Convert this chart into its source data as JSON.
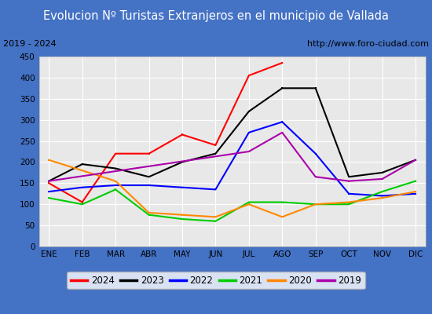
{
  "title": "Evolucion Nº Turistas Extranjeros en el municipio de Vallada",
  "subtitle_left": "2019 - 2024",
  "subtitle_right": "http://www.foro-ciudad.com",
  "months": [
    "ENE",
    "FEB",
    "MAR",
    "ABR",
    "MAY",
    "JUN",
    "JUL",
    "AGO",
    "SEP",
    "OCT",
    "NOV",
    "DIC"
  ],
  "ylim": [
    0,
    450
  ],
  "yticks": [
    0,
    50,
    100,
    150,
    200,
    250,
    300,
    350,
    400,
    450
  ],
  "series": {
    "2024": {
      "color": "#ff0000",
      "values": [
        150,
        105,
        220,
        220,
        265,
        240,
        405,
        435,
        null,
        null,
        null,
        null
      ]
    },
    "2023": {
      "color": "#000000",
      "values": [
        155,
        195,
        185,
        165,
        200,
        220,
        320,
        375,
        375,
        165,
        175,
        205
      ]
    },
    "2022": {
      "color": "#0000ff",
      "values": [
        130,
        140,
        145,
        145,
        140,
        135,
        270,
        295,
        220,
        125,
        120,
        125
      ]
    },
    "2021": {
      "color": "#00cc00",
      "values": [
        115,
        100,
        135,
        75,
        65,
        60,
        105,
        105,
        100,
        100,
        130,
        155
      ]
    },
    "2020": {
      "color": "#ff8800",
      "values": [
        205,
        180,
        155,
        80,
        75,
        70,
        100,
        70,
        100,
        105,
        115,
        130
      ]
    },
    "2019": {
      "color": "#aa00aa",
      "values": [
        155,
        null,
        null,
        null,
        null,
        null,
        225,
        270,
        165,
        155,
        160,
        205
      ]
    }
  },
  "title_bg": "#4472c4",
  "title_color": "#ffffff",
  "header_bg": "#ffffff",
  "plot_bg": "#e8e8e8",
  "grid_color": "#ffffff",
  "legend_order": [
    "2024",
    "2023",
    "2022",
    "2021",
    "2020",
    "2019"
  ],
  "outer_border_color": "#4472c4"
}
